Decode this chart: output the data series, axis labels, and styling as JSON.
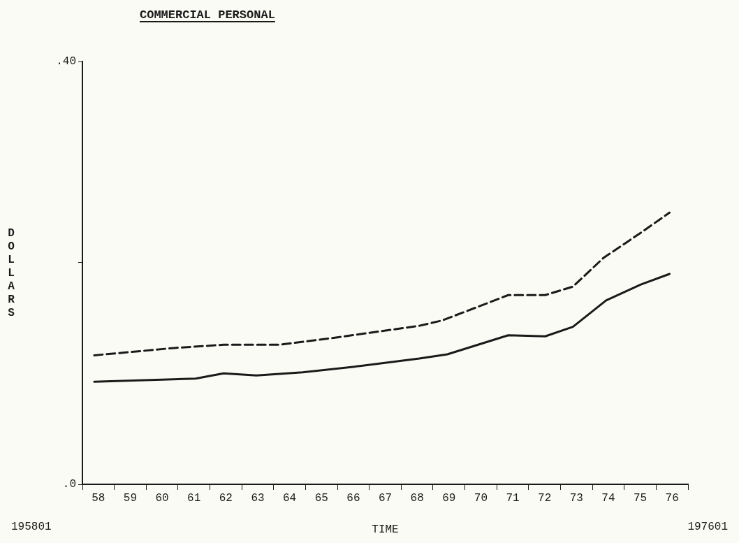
{
  "chart_data": {
    "type": "line",
    "title": "COMMERCIAL PERSONAL",
    "xlabel": "TIME",
    "ylabel": "DOLLARS",
    "annotations": [
      "195801",
      "197601"
    ],
    "xlim": [
      57.5,
      76.5
    ],
    "xticks": [
      {
        "value": 57.5,
        "label": null
      },
      58,
      {
        "value": 58.5,
        "label": null
      },
      59,
      {
        "value": 59.5,
        "label": null
      },
      60,
      {
        "value": 60.5,
        "label": null
      },
      61,
      {
        "value": 61.5,
        "label": null
      },
      62,
      {
        "value": 62.5,
        "label": null
      },
      63,
      {
        "value": 63.5,
        "label": null
      },
      64,
      {
        "value": 64.5,
        "label": null
      },
      65,
      {
        "value": 65.5,
        "label": null
      },
      66,
      {
        "value": 66.5,
        "label": null
      },
      67,
      {
        "value": 67.5,
        "label": null
      },
      68,
      {
        "value": 68.5,
        "label": null
      },
      69,
      {
        "value": 69.5,
        "label": null
      },
      70,
      {
        "value": 70.5,
        "label": null
      },
      71,
      {
        "value": 71.5,
        "label": null
      },
      72,
      {
        "value": 72.5,
        "label": null
      },
      73,
      {
        "value": 73.5,
        "label": null
      },
      74,
      {
        "value": 74.5,
        "label": null
      },
      75,
      {
        "value": 75.5,
        "label": null
      },
      76,
      {
        "value": 76.5,
        "label": null
      }
    ],
    "ylim": [
      0,
      0.4
    ],
    "yticks": [
      {
        "value": 0,
        "label": ".0"
      },
      {
        "value": 0.21,
        "label": null
      },
      {
        "value": 0.4,
        "label": ".40"
      }
    ],
    "grid": false,
    "legend": false,
    "marker": "none",
    "series": [
      {
        "color": "#1a1a1a",
        "line_style": "dashed",
        "x": [
          57.87,
          60.39,
          61.93,
          63.68,
          65.5,
          68.07,
          68.79,
          70.86,
          72.02,
          72.89,
          73.84,
          75.02,
          75.92
        ],
        "values": [
          0.122,
          0.129,
          0.132,
          0.132,
          0.139,
          0.15,
          0.155,
          0.179,
          0.179,
          0.187,
          0.214,
          0.238,
          0.257
        ]
      },
      {
        "color": "#1a1a1a",
        "line_style": "solid",
        "x": [
          57.87,
          61.05,
          61.93,
          62.96,
          64.41,
          66.25,
          68.07,
          68.95,
          70.86,
          72.02,
          72.89,
          73.93,
          75.02,
          75.92
        ],
        "values": [
          0.097,
          0.1,
          0.105,
          0.103,
          0.106,
          0.112,
          0.119,
          0.123,
          0.141,
          0.14,
          0.149,
          0.174,
          0.189,
          0.199
        ]
      }
    ]
  }
}
